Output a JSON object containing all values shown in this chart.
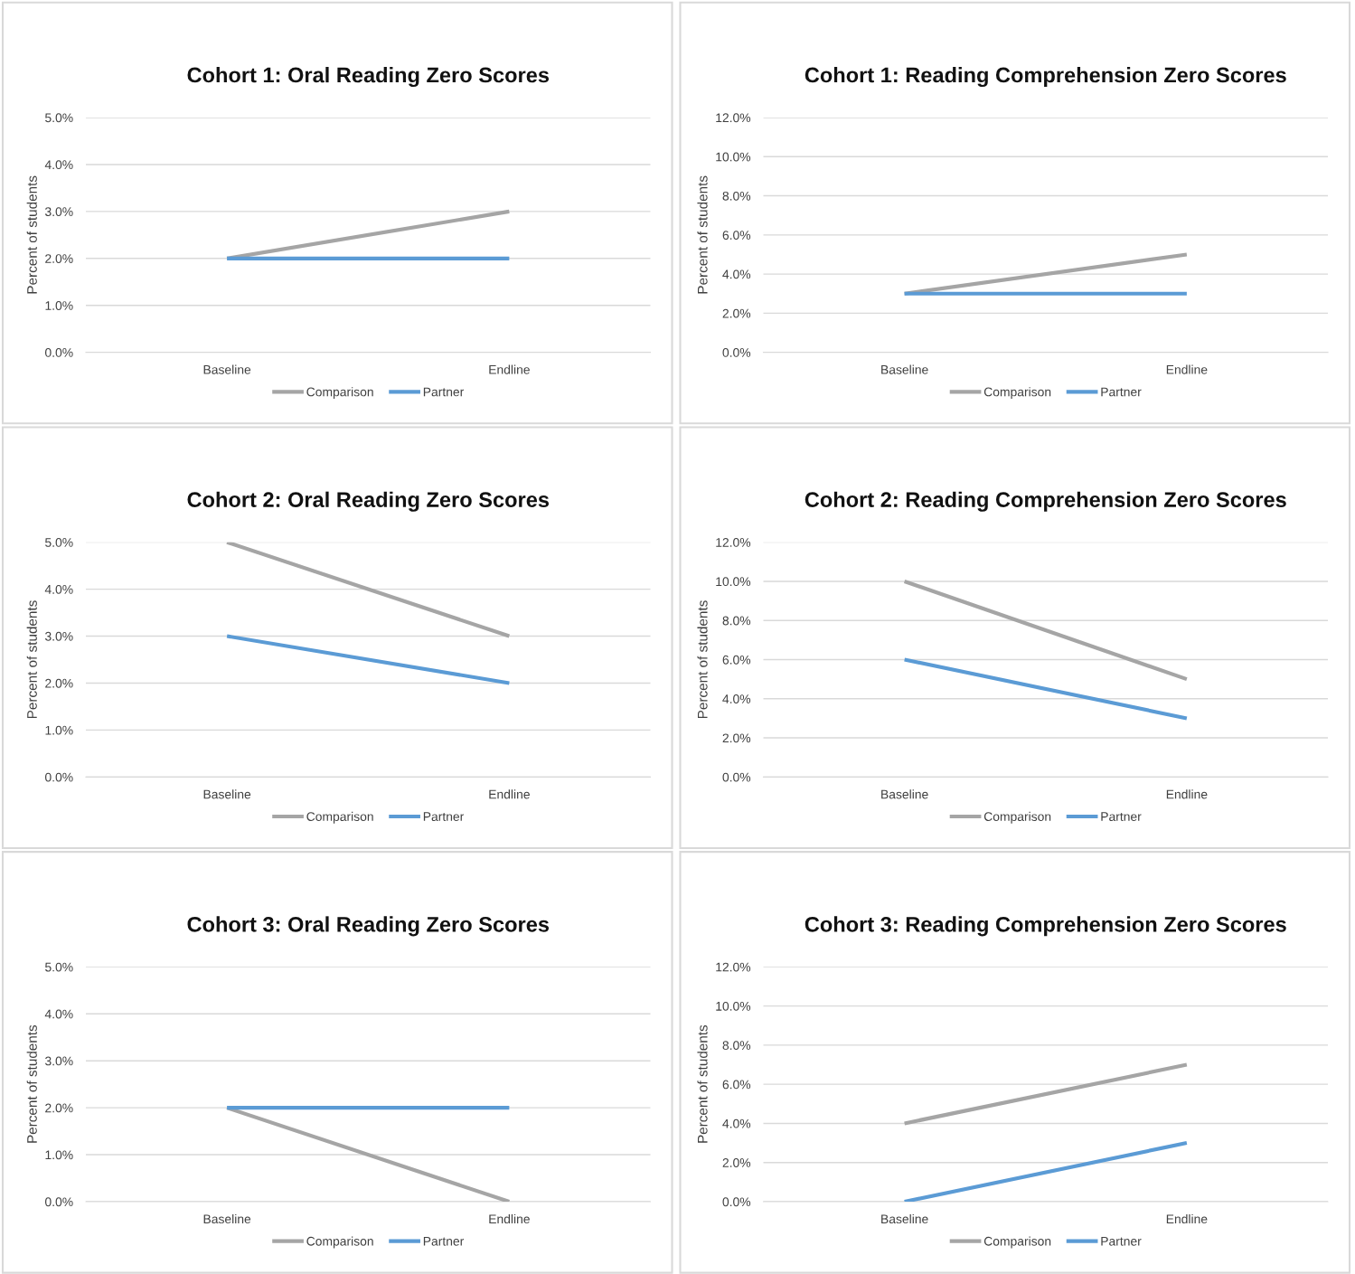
{
  "chart_data": [
    {
      "type": "line",
      "title": "Cohort 1: Oral Reading Zero Scores",
      "ylabel": "Percent of students",
      "categories": [
        "Baseline",
        "Endline"
      ],
      "series": [
        {
          "name": "Comparison",
          "color": "#a5a5a5",
          "values": [
            2,
            3
          ]
        },
        {
          "name": "Partner",
          "color": "#5b9bd5",
          "values": [
            2,
            2
          ]
        }
      ],
      "ylim": [
        0,
        5
      ],
      "yticks": [
        {
          "value": 0,
          "label": "0.0%"
        },
        {
          "value": 1,
          "label": "1.0%"
        },
        {
          "value": 2,
          "label": "2.0%"
        },
        {
          "value": 3,
          "label": "3.0%"
        },
        {
          "value": 4,
          "label": "4.0%"
        },
        {
          "value": 5,
          "label": "5.0%"
        }
      ],
      "grid": "y",
      "legend": "bottom",
      "marker": "none",
      "line_style": "solid"
    },
    {
      "type": "line",
      "title": "Cohort 1: Reading Comprehension Zero Scores",
      "ylabel": "Percent of students",
      "categories": [
        "Baseline",
        "Endline"
      ],
      "series": [
        {
          "name": "Comparison",
          "color": "#a5a5a5",
          "values": [
            3,
            5
          ]
        },
        {
          "name": "Partner",
          "color": "#5b9bd5",
          "values": [
            3,
            3
          ]
        }
      ],
      "ylim": [
        0,
        12
      ],
      "yticks": [
        {
          "value": 0,
          "label": "0.0%"
        },
        {
          "value": 2,
          "label": "2.0%"
        },
        {
          "value": 4,
          "label": "4.0%"
        },
        {
          "value": 6,
          "label": "6.0%"
        },
        {
          "value": 8,
          "label": "8.0%"
        },
        {
          "value": 10,
          "label": "10.0%"
        },
        {
          "value": 12,
          "label": "12.0%"
        }
      ],
      "grid": "y",
      "legend": "bottom",
      "marker": "none",
      "line_style": "solid"
    },
    {
      "type": "line",
      "title": "Cohort 2: Oral Reading Zero Scores",
      "ylabel": "Percent of students",
      "categories": [
        "Baseline",
        "Endline"
      ],
      "series": [
        {
          "name": "Comparison",
          "color": "#a5a5a5",
          "values": [
            5,
            3
          ]
        },
        {
          "name": "Partner",
          "color": "#5b9bd5",
          "values": [
            3,
            2
          ]
        }
      ],
      "ylim": [
        0,
        5
      ],
      "yticks": [
        {
          "value": 0,
          "label": "0.0%"
        },
        {
          "value": 1,
          "label": "1.0%"
        },
        {
          "value": 2,
          "label": "2.0%"
        },
        {
          "value": 3,
          "label": "3.0%"
        },
        {
          "value": 4,
          "label": "4.0%"
        },
        {
          "value": 5,
          "label": "5.0%"
        }
      ],
      "grid": "y",
      "legend": "bottom",
      "marker": "none",
      "line_style": "solid"
    },
    {
      "type": "line",
      "title": "Cohort 2: Reading Comprehension Zero Scores",
      "ylabel": "Percent of students",
      "categories": [
        "Baseline",
        "Endline"
      ],
      "series": [
        {
          "name": "Comparison",
          "color": "#a5a5a5",
          "values": [
            10,
            5
          ]
        },
        {
          "name": "Partner",
          "color": "#5b9bd5",
          "values": [
            6,
            3
          ]
        }
      ],
      "ylim": [
        0,
        12
      ],
      "yticks": [
        {
          "value": 0,
          "label": "0.0%"
        },
        {
          "value": 2,
          "label": "2.0%"
        },
        {
          "value": 4,
          "label": "4.0%"
        },
        {
          "value": 6,
          "label": "6.0%"
        },
        {
          "value": 8,
          "label": "8.0%"
        },
        {
          "value": 10,
          "label": "10.0%"
        },
        {
          "value": 12,
          "label": "12.0%"
        }
      ],
      "grid": "y",
      "legend": "bottom",
      "marker": "none",
      "line_style": "solid"
    },
    {
      "type": "line",
      "title": "Cohort 3: Oral Reading Zero Scores",
      "ylabel": "Percent of students",
      "categories": [
        "Baseline",
        "Endline"
      ],
      "series": [
        {
          "name": "Comparison",
          "color": "#a5a5a5",
          "values": [
            2,
            0
          ]
        },
        {
          "name": "Partner",
          "color": "#5b9bd5",
          "values": [
            2,
            2
          ]
        }
      ],
      "ylim": [
        0,
        5
      ],
      "yticks": [
        {
          "value": 0,
          "label": "0.0%"
        },
        {
          "value": 1,
          "label": "1.0%"
        },
        {
          "value": 2,
          "label": "2.0%"
        },
        {
          "value": 3,
          "label": "3.0%"
        },
        {
          "value": 4,
          "label": "4.0%"
        },
        {
          "value": 5,
          "label": "5.0%"
        }
      ],
      "grid": "y",
      "legend": "bottom",
      "marker": "none",
      "line_style": "solid"
    },
    {
      "type": "line",
      "title": "Cohort 3: Reading Comprehension Zero Scores",
      "ylabel": "Percent of students",
      "categories": [
        "Baseline",
        "Endline"
      ],
      "series": [
        {
          "name": "Comparison",
          "color": "#a5a5a5",
          "values": [
            4,
            7
          ]
        },
        {
          "name": "Partner",
          "color": "#5b9bd5",
          "values": [
            0,
            3
          ]
        }
      ],
      "ylim": [
        0,
        12
      ],
      "yticks": [
        {
          "value": 0,
          "label": "0.0%"
        },
        {
          "value": 2,
          "label": "2.0%"
        },
        {
          "value": 4,
          "label": "4.0%"
        },
        {
          "value": 6,
          "label": "6.0%"
        },
        {
          "value": 8,
          "label": "8.0%"
        },
        {
          "value": 10,
          "label": "10.0%"
        },
        {
          "value": 12,
          "label": "12.0%"
        }
      ],
      "grid": "y",
      "legend": "bottom",
      "marker": "none",
      "line_style": "solid"
    }
  ]
}
